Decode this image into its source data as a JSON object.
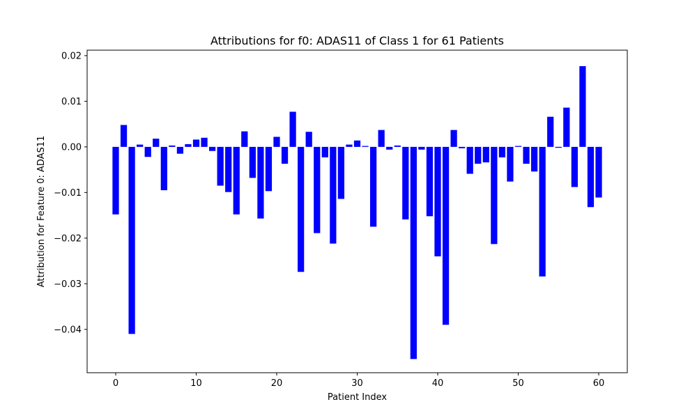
{
  "chart_data": {
    "type": "bar",
    "title": "Attributions for f0: ADAS11 of Class 1 for 61 Patients",
    "xlabel": "Patient Index",
    "ylabel": "Attribution for Feature 0: ADAS11",
    "bar_color": "#0000ff",
    "xlim": [
      -3.55,
      63.55
    ],
    "ylim": [
      -0.0495,
      0.0212
    ],
    "xticks": [
      0,
      10,
      20,
      30,
      40,
      50,
      60
    ],
    "xtick_labels": [
      "0",
      "10",
      "20",
      "30",
      "40",
      "50",
      "60"
    ],
    "yticks": [
      0.02,
      0.01,
      0.0,
      -0.01,
      -0.02,
      -0.03,
      -0.04
    ],
    "ytick_labels": [
      "0.02",
      "0.01",
      "0.00",
      "−0.01",
      "−0.02",
      "−0.03",
      "−0.04"
    ],
    "grid": false,
    "x": [
      0,
      1,
      2,
      3,
      4,
      5,
      6,
      7,
      8,
      9,
      10,
      11,
      12,
      13,
      14,
      15,
      16,
      17,
      18,
      19,
      20,
      21,
      22,
      23,
      24,
      25,
      26,
      27,
      28,
      29,
      30,
      31,
      32,
      33,
      34,
      35,
      36,
      37,
      38,
      39,
      40,
      41,
      42,
      43,
      44,
      45,
      46,
      47,
      48,
      49,
      50,
      51,
      52,
      53,
      54,
      55,
      56,
      57,
      58,
      59,
      60
    ],
    "values": [
      -0.0148,
      0.0048,
      -0.041,
      0.0005,
      -0.0022,
      0.0018,
      -0.0095,
      0.0003,
      -0.0015,
      0.0006,
      0.0016,
      0.002,
      -0.0009,
      -0.0085,
      -0.0099,
      -0.0148,
      0.0034,
      -0.0068,
      -0.0157,
      -0.0097,
      0.0022,
      -0.0037,
      0.0077,
      -0.0274,
      0.0033,
      -0.0189,
      -0.0023,
      -0.0212,
      -0.0114,
      0.0005,
      0.0014,
      0.0002,
      -0.0175,
      0.0037,
      -0.0006,
      0.0003,
      -0.0159,
      -0.0465,
      -0.0006,
      -0.0152,
      -0.024,
      -0.039,
      0.0037,
      -0.0003,
      -0.0059,
      -0.0037,
      -0.0034,
      -0.0213,
      -0.0023,
      -0.0076,
      0.0002,
      -0.0037,
      -0.0054,
      -0.0284,
      0.0066,
      -0.0002,
      0.0086,
      -0.0088,
      0.0177,
      -0.0132,
      -0.0111
    ]
  }
}
